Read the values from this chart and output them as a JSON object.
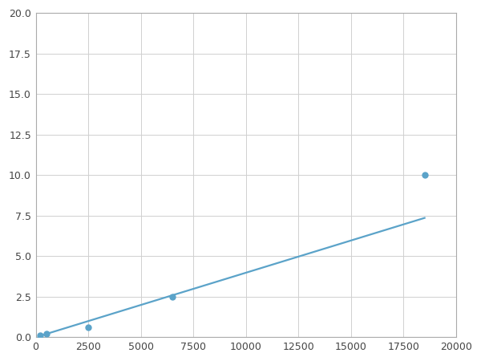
{
  "x_points": [
    200,
    500,
    2500,
    6500,
    18500
  ],
  "y_points": [
    0.1,
    0.2,
    0.6,
    2.5,
    10.0
  ],
  "line_color": "#5ba3c9",
  "marker_color": "#5ba3c9",
  "marker_size": 5,
  "line_width": 1.6,
  "xlim": [
    0,
    20000
  ],
  "ylim": [
    0,
    20.0
  ],
  "xticks": [
    0,
    2500,
    5000,
    7500,
    10000,
    12500,
    15000,
    17500,
    20000
  ],
  "yticks": [
    0.0,
    2.5,
    5.0,
    7.5,
    10.0,
    12.5,
    15.0,
    17.5,
    20.0
  ],
  "grid_color": "#d0d0d0",
  "background_color": "#ffffff",
  "figure_background": "#ffffff",
  "power_a": 0.000132,
  "power_b": 1.42
}
